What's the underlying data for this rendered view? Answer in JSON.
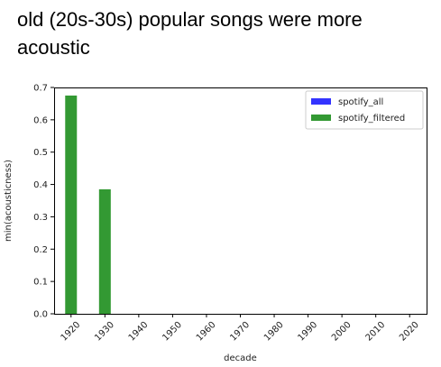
{
  "caption": "old (20s-30s) popular songs were more acoustic",
  "chart_data": {
    "type": "bar",
    "title": "",
    "xlabel": "decade",
    "ylabel": "min(acousticness)",
    "categories": [
      "1920",
      "1930",
      "1940",
      "1950",
      "1960",
      "1970",
      "1980",
      "1990",
      "2000",
      "2010",
      "2020"
    ],
    "yticks": [
      "0.0",
      "0.1",
      "0.2",
      "0.3",
      "0.4",
      "0.5",
      "0.6",
      "0.7"
    ],
    "ylim": [
      0,
      0.7
    ],
    "grid": false,
    "legend_position": "top-right",
    "series": [
      {
        "name": "spotify_all",
        "color": "#3333ff",
        "values": [
          0,
          0,
          0,
          0,
          0,
          0,
          0,
          0,
          0,
          0,
          0
        ]
      },
      {
        "name": "spotify_filtered",
        "color": "#339933",
        "values": [
          0.675,
          0.385,
          0,
          0,
          0,
          0,
          0,
          0,
          0,
          0,
          0
        ]
      }
    ]
  }
}
